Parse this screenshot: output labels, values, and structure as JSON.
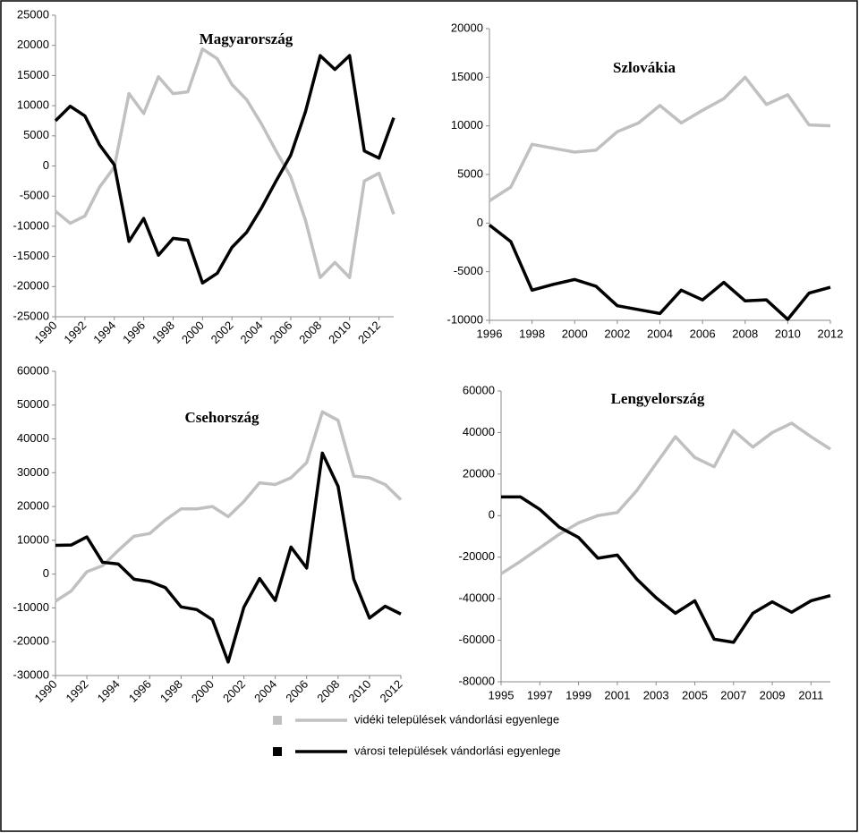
{
  "chart_data": [
    {
      "type": "line",
      "title": "Magyarország",
      "x": [
        1990,
        1991,
        1992,
        1993,
        1994,
        1995,
        1996,
        1997,
        1998,
        1999,
        2000,
        2001,
        2002,
        2003,
        2004,
        2005,
        2006,
        2007,
        2008,
        2009,
        2010,
        2011,
        2012,
        2013
      ],
      "series": [
        {
          "color": "#c0c0c0",
          "values": [
            -7500,
            -9500,
            -8300,
            -3500,
            -200,
            12000,
            8700,
            14800,
            12000,
            12300,
            19400,
            17800,
            13500,
            11000,
            7000,
            2500,
            -1800,
            -9000,
            -18500,
            -16000,
            -18500,
            -2500,
            -1200,
            -8000
          ]
        },
        {
          "color": "#000000",
          "values": [
            7500,
            9900,
            8300,
            3500,
            200,
            -12500,
            -8700,
            -14800,
            -12000,
            -12300,
            -19400,
            -17800,
            -13500,
            -11000,
            -7000,
            -2500,
            1800,
            9000,
            18300,
            16000,
            18300,
            2500,
            1300,
            8000
          ]
        }
      ],
      "xlim": [
        1990,
        2013
      ],
      "xticks": [
        1990,
        1992,
        1994,
        1996,
        1998,
        2000,
        2002,
        2004,
        2006,
        2008,
        2010,
        2012
      ],
      "ylim": [
        -25000,
        25000
      ],
      "yticks": [
        -25000,
        -20000,
        -15000,
        -10000,
        -5000,
        0,
        5000,
        10000,
        15000,
        20000,
        25000
      ]
    },
    {
      "type": "line",
      "title": "Szlovákia",
      "x": [
        1996,
        1997,
        1998,
        1999,
        2000,
        2001,
        2002,
        2003,
        2004,
        2005,
        2006,
        2007,
        2008,
        2009,
        2010,
        2011,
        2012
      ],
      "series": [
        {
          "color": "#c0c0c0",
          "values": [
            2300,
            3700,
            8100,
            7700,
            7300,
            7500,
            9400,
            10300,
            12100,
            10300,
            11600,
            12800,
            15000,
            12200,
            13200,
            10100,
            10000
          ]
        },
        {
          "color": "#000000",
          "values": [
            -200,
            -1900,
            -6900,
            -6300,
            -5800,
            -6500,
            -8500,
            -8900,
            -9300,
            -6900,
            -7900,
            -6100,
            -8000,
            -7900,
            -9900,
            -7200,
            -6600
          ]
        }
      ],
      "xlim": [
        1996,
        2012
      ],
      "xticks": [
        1996,
        1998,
        2000,
        2002,
        2004,
        2006,
        2008,
        2010,
        2012
      ],
      "ylim": [
        -10000,
        20000
      ],
      "yticks": [
        -10000,
        -5000,
        0,
        5000,
        10000,
        15000,
        20000
      ]
    },
    {
      "type": "line",
      "title": "Csehország",
      "x": [
        1990,
        1991,
        1992,
        1993,
        1994,
        1995,
        1996,
        1997,
        1998,
        1999,
        2000,
        2001,
        2002,
        2003,
        2004,
        2005,
        2006,
        2007,
        2008,
        2009,
        2010,
        2011,
        2012
      ],
      "series": [
        {
          "color": "#c0c0c0",
          "values": [
            -8000,
            -5000,
            700,
            2500,
            7000,
            11200,
            12000,
            16000,
            19300,
            19300,
            20000,
            17000,
            21500,
            27000,
            26500,
            28500,
            33000,
            48000,
            45500,
            29000,
            28500,
            26500,
            22000
          ]
        },
        {
          "color": "#000000",
          "values": [
            8500,
            8600,
            11000,
            3500,
            3000,
            -1500,
            -2200,
            -4000,
            -9700,
            -10500,
            -13500,
            -26000,
            -9800,
            -1300,
            -7800,
            8000,
            1800,
            35800,
            26000,
            -1500,
            -13000,
            -9500,
            -11800
          ]
        }
      ],
      "xlim": [
        1990,
        2012
      ],
      "xticks": [
        1990,
        1992,
        1994,
        1996,
        1998,
        2000,
        2002,
        2004,
        2006,
        2008,
        2010,
        2012
      ],
      "ylim": [
        -30000,
        60000
      ],
      "yticks": [
        -30000,
        -20000,
        -10000,
        0,
        10000,
        20000,
        30000,
        40000,
        50000,
        60000
      ]
    },
    {
      "type": "line",
      "title": "Lengyelország",
      "x": [
        1995,
        1996,
        1997,
        1998,
        1999,
        2000,
        2001,
        2002,
        2003,
        2004,
        2005,
        2006,
        2007,
        2008,
        2009,
        2010,
        2011,
        2012
      ],
      "series": [
        {
          "color": "#c0c0c0",
          "values": [
            -28000,
            -22000,
            -15500,
            -9000,
            -3500,
            0,
            1500,
            12000,
            25000,
            38000,
            28000,
            23500,
            41000,
            33000,
            40000,
            44500,
            38000,
            32000
          ]
        },
        {
          "color": "#000000",
          "values": [
            9000,
            9000,
            3000,
            -5500,
            -10500,
            -20500,
            -19000,
            -30500,
            -39500,
            -47000,
            -41000,
            -59500,
            -61000,
            -47000,
            -41500,
            -46500,
            -41000,
            -38500
          ]
        }
      ],
      "xlim": [
        1995,
        2012
      ],
      "xticks": [
        1995,
        1997,
        1999,
        2001,
        2003,
        2005,
        2007,
        2009,
        2011
      ],
      "ylim": [
        -80000,
        60000
      ],
      "yticks": [
        -80000,
        -60000,
        -40000,
        -20000,
        0,
        20000,
        40000,
        60000
      ]
    }
  ],
  "legend": [
    {
      "name": "vidéki települések vándorlási egyenlege",
      "color": "#c0c0c0"
    },
    {
      "name": "városi települések vándorlási egyenlege",
      "color": "#000000"
    }
  ]
}
